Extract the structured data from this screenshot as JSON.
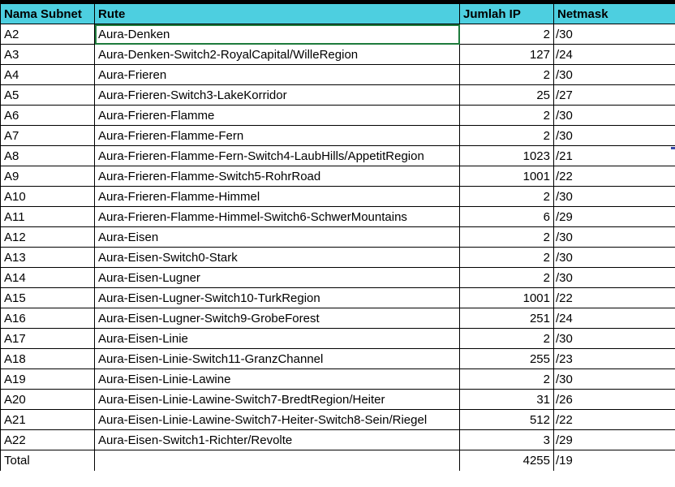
{
  "headers": [
    "Nama Subnet",
    "Rute",
    "Jumlah IP",
    "Netmask"
  ],
  "rows": [
    {
      "subnet": "A2",
      "rute": "Aura-Denken",
      "ip": "2",
      "mask": "/30"
    },
    {
      "subnet": "A3",
      "rute": "Aura-Denken-Switch2-RoyalCapital/WilleRegion",
      "ip": "127",
      "mask": "/24"
    },
    {
      "subnet": "A4",
      "rute": "Aura-Frieren",
      "ip": "2",
      "mask": "/30"
    },
    {
      "subnet": "A5",
      "rute": "Aura-Frieren-Switch3-LakeKorridor",
      "ip": "25",
      "mask": "/27"
    },
    {
      "subnet": "A6",
      "rute": "Aura-Frieren-Flamme",
      "ip": "2",
      "mask": "/30"
    },
    {
      "subnet": "A7",
      "rute": "Aura-Frieren-Flamme-Fern",
      "ip": "2",
      "mask": "/30"
    },
    {
      "subnet": "A8",
      "rute": "Aura-Frieren-Flamme-Fern-Switch4-LaubHills/AppetitRegion",
      "ip": "1023",
      "mask": "/21"
    },
    {
      "subnet": "A9",
      "rute": "Aura-Frieren-Flamme-Switch5-RohrRoad",
      "ip": "1001",
      "mask": "/22"
    },
    {
      "subnet": "A10",
      "rute": "Aura-Frieren-Flamme-Himmel",
      "ip": "2",
      "mask": "/30"
    },
    {
      "subnet": "A11",
      "rute": "Aura-Frieren-Flamme-Himmel-Switch6-SchwerMountains",
      "ip": "6",
      "mask": "/29"
    },
    {
      "subnet": "A12",
      "rute": "Aura-Eisen",
      "ip": "2",
      "mask": "/30"
    },
    {
      "subnet": "A13",
      "rute": "Aura-Eisen-Switch0-Stark",
      "ip": "2",
      "mask": "/30"
    },
    {
      "subnet": "A14",
      "rute": "Aura-Eisen-Lugner",
      "ip": "2",
      "mask": "/30"
    },
    {
      "subnet": "A15",
      "rute": "Aura-Eisen-Lugner-Switch10-TurkRegion",
      "ip": "1001",
      "mask": "/22"
    },
    {
      "subnet": "A16",
      "rute": "Aura-Eisen-Lugner-Switch9-GrobeForest",
      "ip": "251",
      "mask": "/24"
    },
    {
      "subnet": "A17",
      "rute": "Aura-Eisen-Linie",
      "ip": "2",
      "mask": "/30"
    },
    {
      "subnet": "A18",
      "rute": "Aura-Eisen-Linie-Switch11-GranzChannel",
      "ip": "255",
      "mask": "/23"
    },
    {
      "subnet": "A19",
      "rute": "Aura-Eisen-Linie-Lawine",
      "ip": "2",
      "mask": "/30"
    },
    {
      "subnet": "A20",
      "rute": "Aura-Eisen-Linie-Lawine-Switch7-BredtRegion/Heiter",
      "ip": "31",
      "mask": "/26"
    },
    {
      "subnet": "A21",
      "rute": "Aura-Eisen-Linie-Lawine-Switch7-Heiter-Switch8-Sein/Riegel",
      "ip": "512",
      "mask": "/22"
    },
    {
      "subnet": "A22",
      "rute": "Aura-Eisen-Switch1-Richter/Revolte",
      "ip": "3",
      "mask": "/29"
    }
  ],
  "total": {
    "label": "Total",
    "rute": "",
    "ip": "4255",
    "mask": "/19"
  }
}
